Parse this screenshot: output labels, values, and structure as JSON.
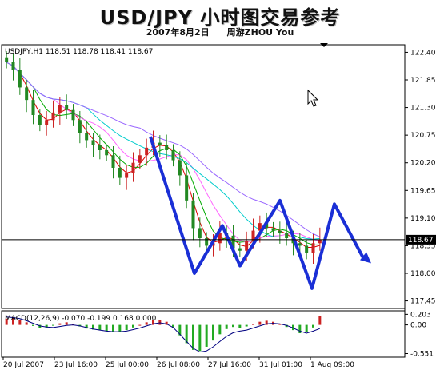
{
  "header": {
    "title": "USD/JPY 小时图交易参考",
    "date": "2007年8月2日",
    "author": "周游ZHOU You"
  },
  "chart_data": [
    {
      "type": "candlestick",
      "info_label": "USDJPY,H1  118.51 118.78 118.41 118.67",
      "price_ticks": [
        122.4,
        121.85,
        121.3,
        120.75,
        120.2,
        119.65,
        119.1,
        118.55,
        118.0,
        117.45
      ],
      "price_tick_labels": [
        "122.40",
        "121.85",
        "121.30",
        "120.75",
        "120.20",
        "119.65",
        "119.10",
        "118.55",
        "118.00",
        "117.45"
      ],
      "ylim": [
        117.3,
        122.55
      ],
      "current_price": 118.67,
      "current_price_label": "118.67",
      "x_ticks": [
        "20 Jul 2007",
        "23 Jul 16:00",
        "25 Jul 00:00",
        "26 Jul 08:00",
        "27 Jul 16:00",
        "31 Jul 01:00",
        "1 Aug 09:00"
      ],
      "closes": [
        122.2,
        122.05,
        121.7,
        121.45,
        121.15,
        120.95,
        121.05,
        121.2,
        121.35,
        121.25,
        121.05,
        120.8,
        120.65,
        120.55,
        120.45,
        120.35,
        120.1,
        119.9,
        120.0,
        120.2,
        120.35,
        120.5,
        120.6,
        120.55,
        120.45,
        120.25,
        119.95,
        119.45,
        118.9,
        118.7,
        118.55,
        118.6,
        118.8,
        118.75,
        118.5,
        118.45,
        118.65,
        118.85,
        119.0,
        118.9,
        118.85,
        118.8,
        118.7,
        118.6,
        118.55,
        118.4,
        118.6,
        118.67
      ],
      "forecast_path": [
        [
          120.72
        ],
        [
          118.0
        ],
        [
          118.95
        ],
        [
          118.15
        ],
        [
          119.45
        ],
        [
          117.7
        ],
        [
          119.38
        ],
        [
          118.28
        ]
      ],
      "moving_averages_colors": [
        "#dd0000",
        "#00aa00",
        "#ff66ff",
        "#00cccc",
        "#9966ff"
      ]
    },
    {
      "type": "bar",
      "label": "MACD(12,26,9) -0.070 -0.199 0.168 0.000",
      "tick_labels": [
        "0.203",
        "0.00",
        "-0.551"
      ],
      "ylim": [
        -0.62,
        0.27
      ],
      "histogram": [
        0.12,
        0.14,
        0.1,
        0.05,
        -0.02,
        -0.06,
        -0.05,
        -0.01,
        0.03,
        0.05,
        0.02,
        -0.03,
        -0.07,
        -0.09,
        -0.1,
        -0.12,
        -0.14,
        -0.13,
        -0.1,
        -0.05,
        0.0,
        0.05,
        0.09,
        0.1,
        0.06,
        -0.05,
        -0.2,
        -0.35,
        -0.48,
        -0.5,
        -0.42,
        -0.3,
        -0.18,
        -0.08,
        -0.04,
        -0.06,
        -0.03,
        0.02,
        0.06,
        0.08,
        0.06,
        0.02,
        -0.04,
        -0.1,
        -0.16,
        -0.14,
        -0.05,
        0.168
      ],
      "signal": [
        0.15,
        0.14,
        0.12,
        0.08,
        0.03,
        -0.02,
        -0.04,
        -0.05,
        -0.03,
        -0.01,
        0.0,
        -0.02,
        -0.05,
        -0.08,
        -0.1,
        -0.12,
        -0.13,
        -0.13,
        -0.12,
        -0.09,
        -0.06,
        -0.02,
        0.02,
        0.04,
        0.02,
        -0.05,
        -0.18,
        -0.32,
        -0.45,
        -0.52,
        -0.5,
        -0.42,
        -0.32,
        -0.22,
        -0.15,
        -0.12,
        -0.1,
        -0.06,
        -0.02,
        0.02,
        0.03,
        0.02,
        -0.01,
        -0.06,
        -0.12,
        -0.16,
        -0.12,
        -0.07
      ],
      "colors": {
        "up": "#cc2222",
        "down": "#22aa22",
        "signal": "#000080"
      }
    }
  ]
}
